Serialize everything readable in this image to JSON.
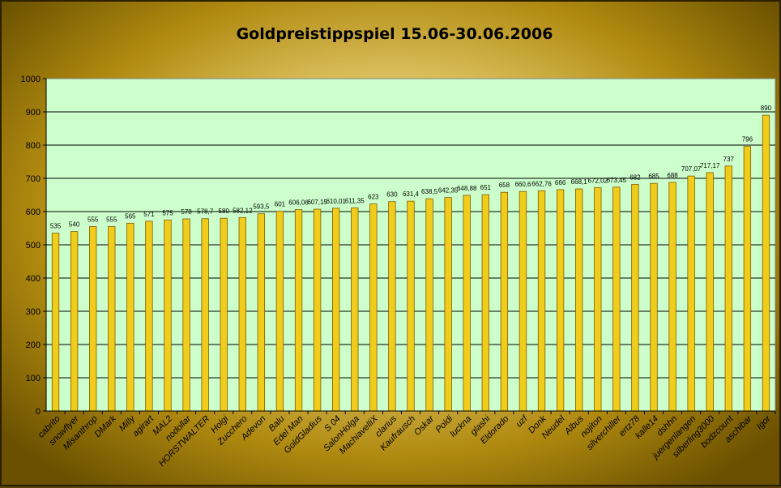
{
  "chart_data": {
    "type": "bar",
    "title": "Goldpreistippspiel 15.06-30.06.2006",
    "xlabel": "",
    "ylabel": "",
    "ylim": [
      0,
      1000
    ],
    "yticks": [
      "0",
      "100",
      "200",
      "300",
      "400",
      "500",
      "600",
      "700",
      "800",
      "900",
      "1000"
    ],
    "grid": true,
    "legend": "none",
    "colors": {
      "bar": "#f2cc1a",
      "bar_edge": "#7a5c00",
      "plot_bg": "#ccffcc",
      "grid": "#000000"
    },
    "categories": [
      "cabrito",
      "snowflyer",
      "Misanthrop",
      "DMark",
      "Milly",
      "agirart",
      "MAL2",
      "nodollar",
      "HORSTWALTER",
      "Holgi",
      "Zucchero",
      "Adevon",
      "Balu",
      "Edel Man",
      "GoldGladius",
      "S 04",
      "SalonHolga",
      "MachiavelliX",
      "clarius",
      "Kaufrausch",
      "Oskar",
      "Poldi",
      "luckna",
      "glashi",
      "Eldorado",
      "uzf",
      "Donk",
      "Neudel",
      "Albus",
      "nojiton",
      "silverchiller",
      "ertz78",
      "kalle14",
      "dshhn",
      "juergenlangen",
      "silberling3000",
      "bodzcount",
      "aschibar",
      "Igor"
    ],
    "values": [
      535,
      540,
      555,
      555,
      565,
      571,
      575,
      578,
      578.7,
      580,
      582.12,
      593.5,
      601,
      606.06,
      607.15,
      610.01,
      611.35,
      623,
      630,
      631.4,
      638.5,
      642.35,
      648.88,
      651,
      658,
      660.6,
      662.76,
      666,
      668.1,
      672.02,
      673.45,
      682,
      685,
      688,
      707.07,
      717.17,
      737,
      796,
      890
    ],
    "labels": [
      "535",
      "540",
      "555",
      "555",
      "565",
      "571",
      "575",
      "578",
      "578,7",
      "580",
      "582,12",
      "593,5",
      "601",
      "606,06",
      "607,15",
      "610,01",
      "611,35",
      "623",
      "630",
      "631,4",
      "638,5",
      "642,35",
      "648,88",
      "651",
      "658",
      "660,6",
      "662,76",
      "666",
      "668,1",
      "672,02",
      "673,45",
      "682",
      "685",
      "688",
      "707,07",
      "717,17",
      "737",
      "796",
      "890"
    ]
  }
}
